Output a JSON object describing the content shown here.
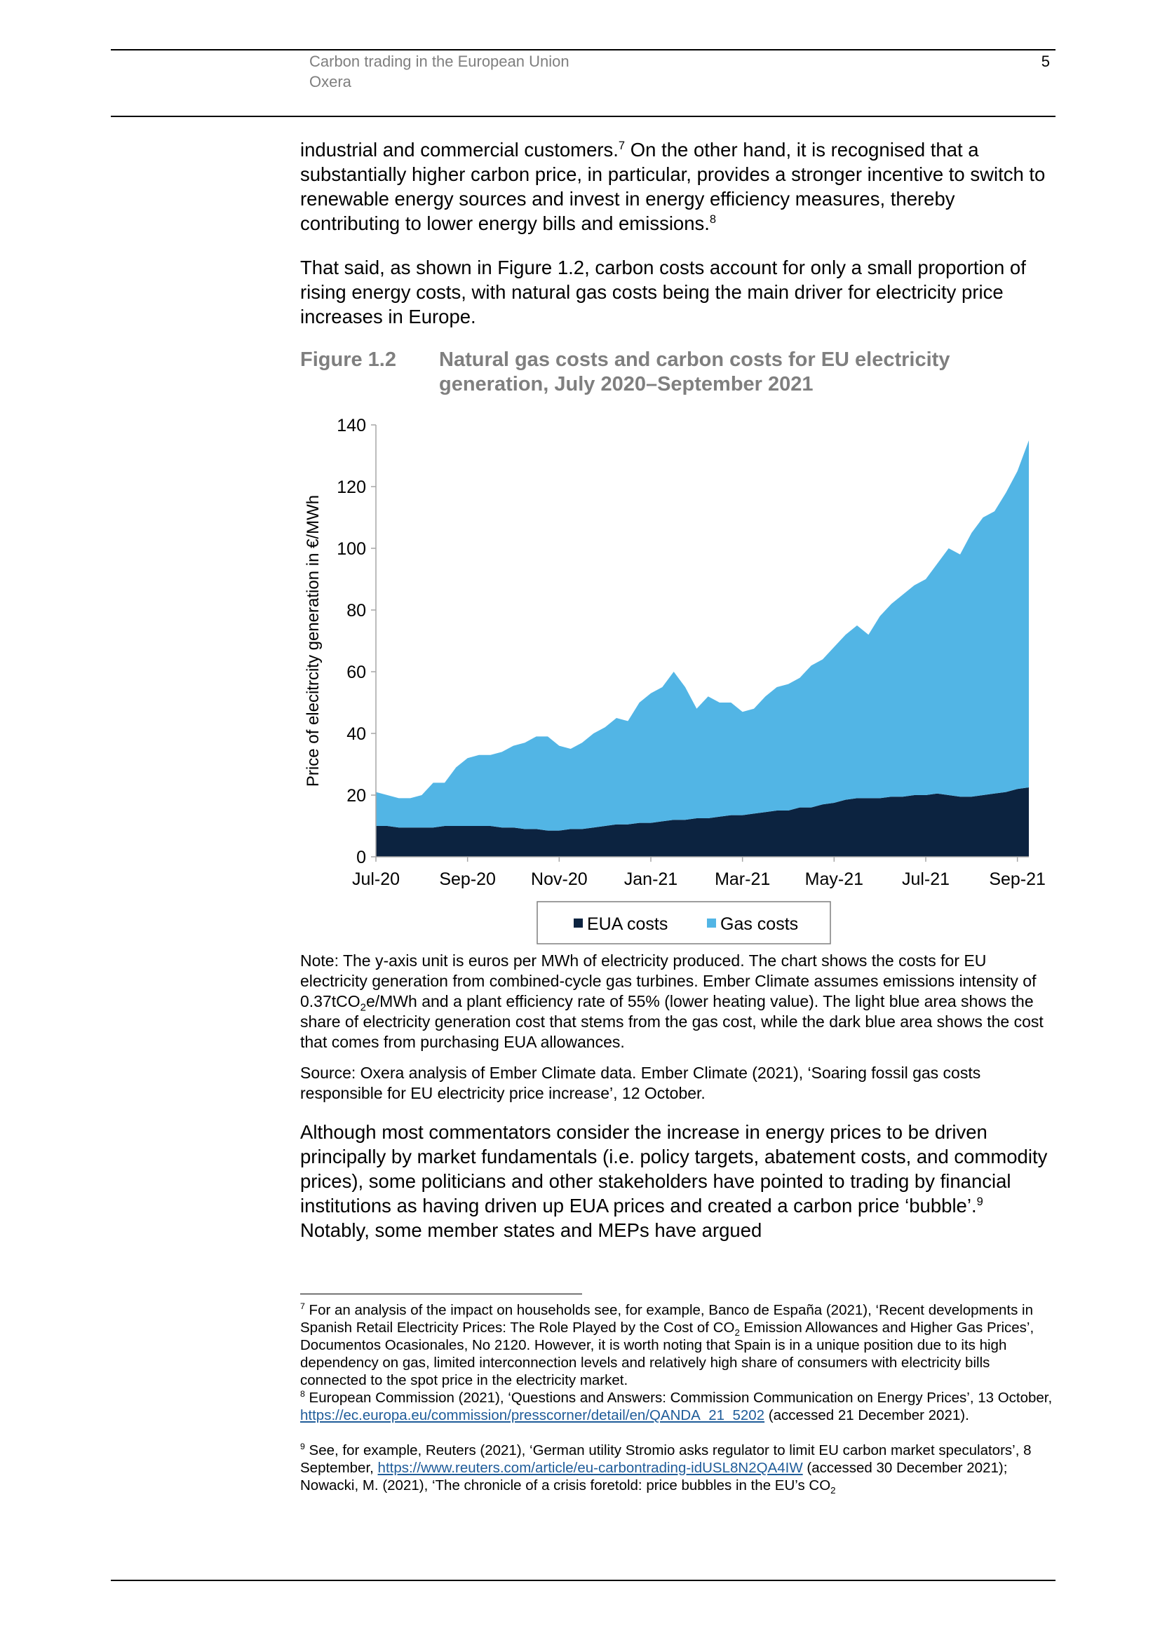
{
  "header": {
    "title": "Carbon trading in the European Union",
    "publisher": "Oxera",
    "page_number": "5"
  },
  "paragraphs": [
    [
      "industrial and commercial customers.",
      "7",
      " On the other hand, it is recognised that a substantially higher carbon price, in particular, provides a stronger incentive to switch to renewable energy sources and invest in energy efficiency measures, thereby contributing to lower energy bills and emissions.",
      "8"
    ],
    [
      "That said, as shown in Figure 1.2, carbon costs account for only a small proportion of rising energy costs, with natural gas costs being the main driver for electricity price increases in Europe."
    ],
    [
      "Although most commentators consider the increase in energy prices to be driven principally by market fundamentals (i.e. policy targets, abatement costs, and commodity prices), some politicians and other stakeholders have pointed to trading by financial institutions as having driven up EUA prices and created a carbon price ‘bubble’.",
      "9",
      " Notably, some member states and MEPs have argued"
    ]
  ],
  "figure": {
    "label": "Figure 1.2",
    "note": [
      "Note: The y-axis unit is euros per MWh of electricity produced. The chart shows the costs for EU electricity generation from combined-cycle gas turbines. Ember Climate assumes emissions intensity of 0.37tCO",
      "2",
      "e/MWh and a plant efficiency rate of 55% (lower heating value). The light blue area shows the share of electricity generation cost that stems from the gas cost, while the dark blue area shows the cost that comes from purchasing EUA allowances."
    ],
    "source": "Source: Oxera analysis of Ember Climate data. Ember Climate (2021), ‘Soaring fossil gas costs responsible for EU electricity price increase’, 12 October."
  },
  "chart_data": {
    "type": "area",
    "stacked": true,
    "title": "Natural gas costs and carbon costs for EU electricity generation, July 2020–September 2021",
    "y_label": "Price of elecitrcity generation  in €/MWh",
    "categories": [
      "Jul-20",
      null,
      null,
      null,
      null,
      null,
      null,
      null,
      "Sep-20",
      null,
      null,
      null,
      null,
      null,
      null,
      null,
      "Nov-20",
      null,
      null,
      null,
      null,
      null,
      null,
      null,
      "Jan-21",
      null,
      null,
      null,
      null,
      null,
      null,
      null,
      "Mar-21",
      null,
      null,
      null,
      null,
      null,
      null,
      null,
      "May-21",
      null,
      null,
      null,
      null,
      null,
      null,
      null,
      "Jul-21",
      null,
      null,
      null,
      null,
      null,
      null,
      null,
      "Sep-21",
      null
    ],
    "series": [
      {
        "name": "EUA costs",
        "color": "#0c2340",
        "values": [
          10,
          10,
          9.5,
          9.5,
          9.5,
          9.5,
          10,
          10,
          10,
          10,
          10,
          9.5,
          9.5,
          9,
          9,
          8.5,
          8.5,
          9,
          9,
          9.5,
          10,
          10.5,
          10.5,
          11,
          11,
          11.5,
          12,
          12,
          12.5,
          12.5,
          13,
          13.5,
          13.5,
          14,
          14.5,
          15,
          15,
          16,
          16,
          17,
          17.5,
          18.5,
          19,
          19,
          19,
          19.5,
          19.5,
          20,
          20,
          20.5,
          20,
          19.5,
          19.5,
          20,
          20.5,
          21,
          22,
          22.5
        ]
      },
      {
        "name": "Gas costs",
        "color": "#52b5e5",
        "values": [
          11,
          10,
          9.5,
          9.5,
          10.5,
          14.5,
          14,
          19,
          22,
          23,
          23,
          24.5,
          26.5,
          28,
          30,
          30.5,
          27.5,
          26,
          28,
          30.5,
          32,
          34.5,
          33.5,
          39,
          42,
          43.5,
          48,
          43,
          35.5,
          39.5,
          37,
          36.5,
          33.5,
          34,
          37.5,
          40,
          41,
          42,
          46,
          47,
          50.5,
          53.5,
          56,
          53,
          59,
          62.5,
          65.5,
          68,
          70,
          74.5,
          80,
          78.5,
          85.5,
          90,
          91.5,
          97,
          103,
          112.5
        ]
      }
    ],
    "ylim": [
      0,
      140
    ],
    "yticks": [
      0,
      20,
      40,
      60,
      80,
      100,
      120,
      140
    ],
    "grid": false,
    "legend": "bottom"
  },
  "footnotes": [
    {
      "number": "7",
      "parts": [
        "For an analysis of the impact on households see, for example, Banco de España (2021), ‘Recent developments in Spanish Retail Electricity Prices: The Role Played by the Cost of CO",
        "2",
        " Emission Allowances and Higher Gas Prices’, Documentos Ocasionales, No 2120. However, it is worth noting that Spain is in a unique position due to its high dependency on gas, limited interconnection levels and relatively high share of consumers with electricity bills connected to the spot price in the electricity market."
      ]
    },
    {
      "number": "8",
      "parts": [
        "European Commission (2021), ‘Questions and Answers: Commission Communication on Energy Prices’, 13 October, ",
        "https://ec.europa.eu/commission/presscorner/detail/en/QANDA_21_5202",
        " (accessed 21 December 2021)."
      ]
    },
    {
      "number": "9",
      "parts": [
        "See, for example, Reuters (2021), ‘German utility Stromio asks regulator to limit EU carbon market speculators’, 8 September, ",
        "https://www.reuters.com/article/eu-carbontrading-idUSL8N2QA4IW",
        " (accessed 30 December 2021); Nowacki, M. (2021), ‘The chronicle of a crisis foretold: price bubbles in the EU’s CO",
        "2"
      ]
    }
  ]
}
